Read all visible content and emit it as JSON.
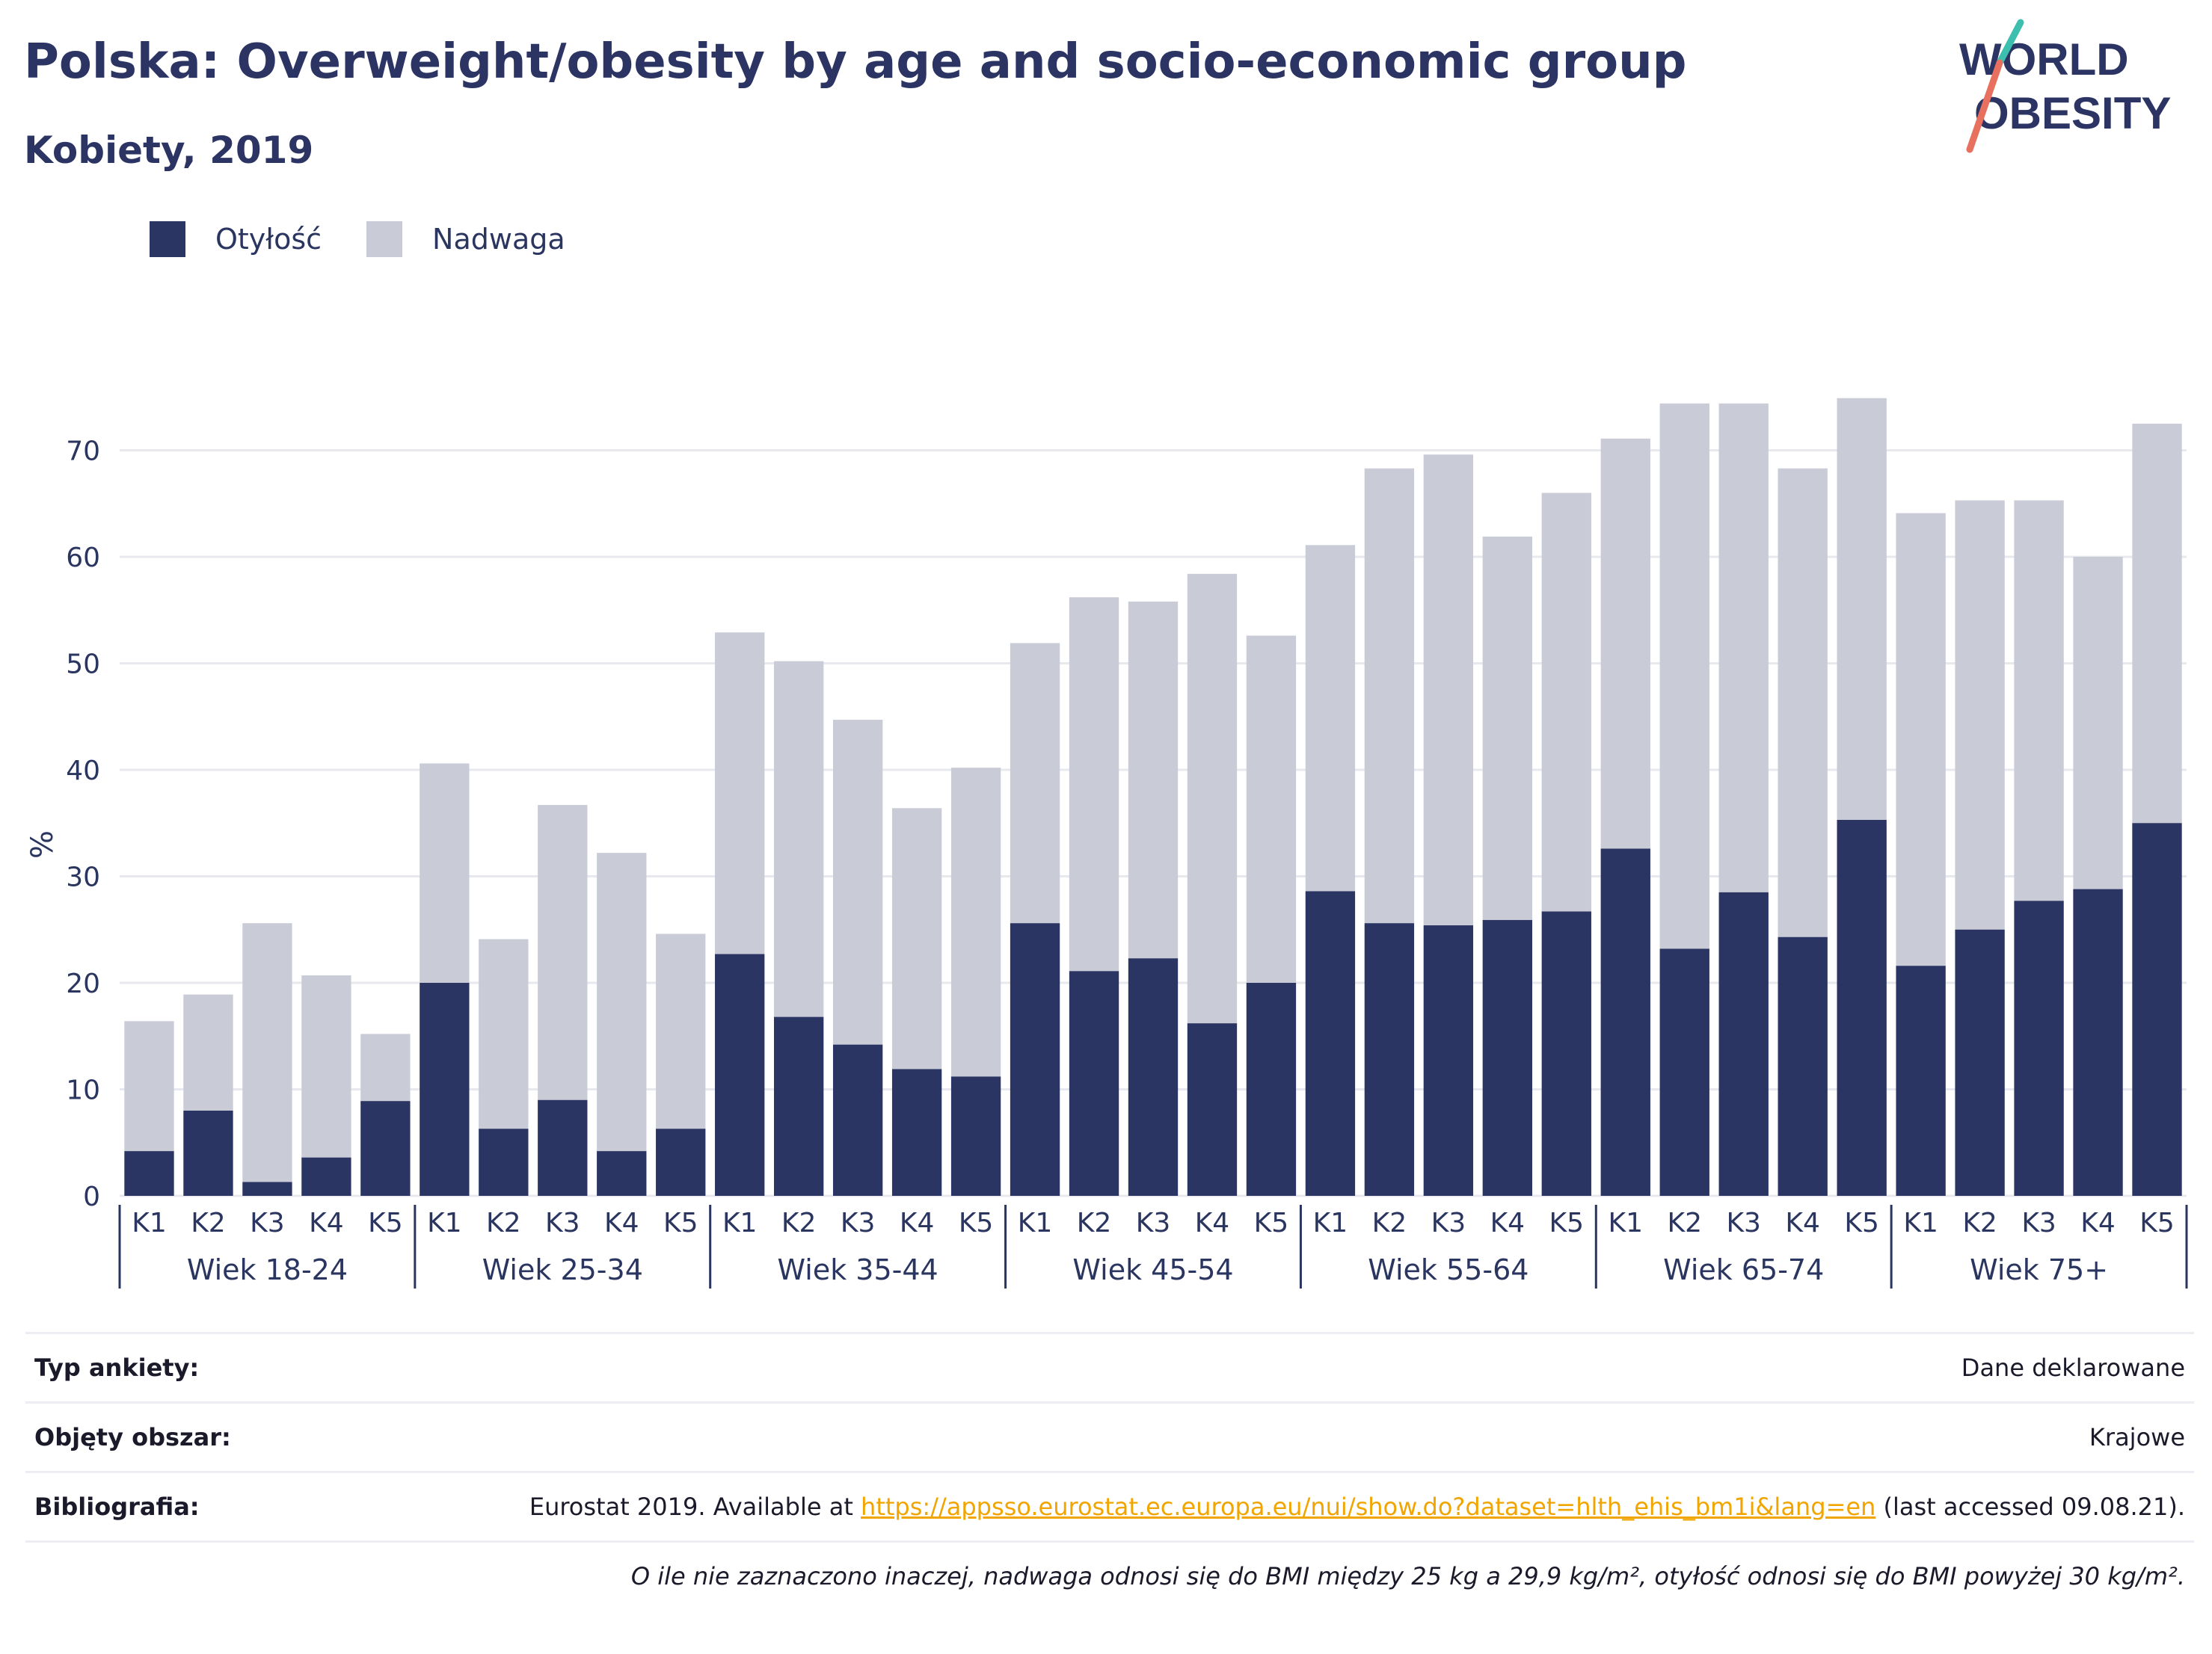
{
  "header": {
    "title": "Polska: Overweight/obesity by age and socio-economic group",
    "subtitle": "Kobiety, 2019"
  },
  "logo": {
    "line1": "WORLD",
    "line2": "OBESITY",
    "name": "world-obesity-logo"
  },
  "colors": {
    "obesity": "#2b3563",
    "overweight": "#c9cbd7",
    "accent_teal": "#3cbfae",
    "accent_coral": "#e8705f"
  },
  "chart_data": {
    "type": "bar",
    "stacked": true,
    "ylabel": "%",
    "ylim": [
      0,
      80
    ],
    "yticks": [
      0,
      10,
      20,
      30,
      40,
      50,
      60,
      70
    ],
    "grid": true,
    "legend_position": "top-left",
    "groups": [
      "Wiek 18-24",
      "Wiek 25-34",
      "Wiek 35-44",
      "Wiek 45-54",
      "Wiek 55-64",
      "Wiek 65-74",
      "Wiek 75+"
    ],
    "subcategories": [
      "K1",
      "K2",
      "K3",
      "K4",
      "K5"
    ],
    "series": [
      {
        "name": "Otyłość",
        "values": [
          4.2,
          8.0,
          1.3,
          3.6,
          8.9,
          20.0,
          6.3,
          9.0,
          4.2,
          6.3,
          22.7,
          16.8,
          14.2,
          11.9,
          11.2,
          25.6,
          21.1,
          22.3,
          16.2,
          20.0,
          28.6,
          25.6,
          25.4,
          25.9,
          26.7,
          32.6,
          23.2,
          28.5,
          24.3,
          35.3,
          21.6,
          25.0,
          27.7,
          28.8,
          35.0
        ]
      },
      {
        "name": "Nadwaga",
        "values": [
          12.2,
          10.9,
          24.3,
          17.1,
          6.3,
          20.6,
          17.8,
          27.7,
          28.0,
          18.3,
          30.2,
          33.4,
          30.5,
          24.5,
          29.0,
          26.3,
          35.1,
          33.5,
          42.2,
          32.6,
          32.5,
          42.7,
          44.2,
          36.0,
          39.3,
          38.5,
          51.2,
          45.9,
          44.0,
          39.6,
          42.5,
          40.3,
          37.6,
          31.2,
          37.5
        ]
      }
    ]
  },
  "info": {
    "rows": [
      {
        "label": "Typ ankiety:",
        "value": "Dane deklarowane"
      },
      {
        "label": "Objęty obszar:",
        "value": "Krajowe"
      }
    ],
    "bibliography": {
      "label": "Bibliografia:",
      "prefix": "Eurostat 2019. Available at ",
      "link": "https://appsso.eurostat.ec.europa.eu/nui/show.do?dataset=hlth_ehis_bm1i&lang=en",
      "suffix": " (last accessed 09.08.21)."
    },
    "note": "O ile nie zaznaczono inaczej, nadwaga odnosi się do BMI między 25 kg a 29,9 kg/m², otyłość odnosi się do BMI powyżej 30 kg/m²."
  }
}
